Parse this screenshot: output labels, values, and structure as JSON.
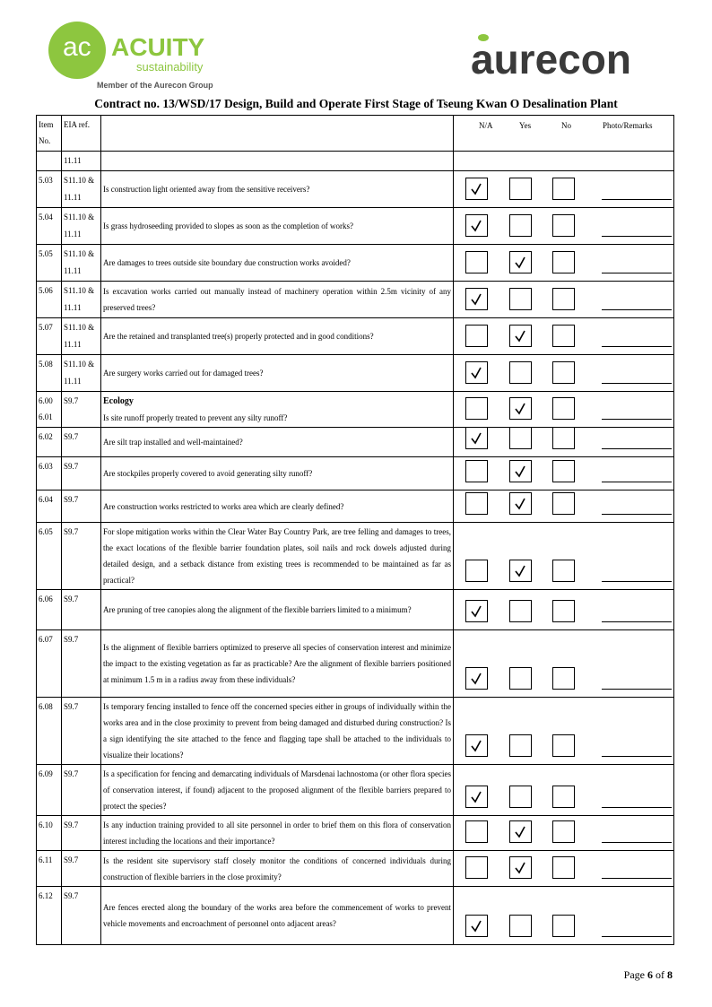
{
  "header": {
    "logo_left": {
      "name": "ACUITY",
      "tagline": "sustainability",
      "member": "Member of the Aurecon Group"
    },
    "logo_right": "aurecon",
    "title": "Contract no.  13/WSD/17 Design, Build and Operate First Stage of Tseung Kwan O Desalination Plant"
  },
  "table": {
    "columns": {
      "item": "Item No.",
      "ref": "EIA ref.",
      "options": [
        "N/A",
        "Yes",
        "No"
      ],
      "remarks": "Photo/Remarks"
    },
    "rows": [
      {
        "item": "",
        "ref": "11.11",
        "question": ""
      },
      {
        "item": "5.03",
        "ref": "S11.10 & 11.11",
        "question": "Is construction light oriented away from the sensitive receivers?",
        "checked": "N/A"
      },
      {
        "item": "5.04",
        "ref": "S11.10 & 11.11",
        "question": "Is grass hydroseeding provided to slopes as soon as the completion of works?",
        "checked": "N/A"
      },
      {
        "item": "5.05",
        "ref": "S11.10 & 11.11",
        "question": "Are damages to trees outside site boundary due construction works avoided?",
        "checked": "Yes"
      },
      {
        "item": "5.06",
        "ref": "S11.10 & 11.11",
        "question": "Is excavation works carried out manually instead of machinery operation within 2.5m vicinity of any preserved trees?",
        "checked": "N/A"
      },
      {
        "item": "5.07",
        "ref": "S11.10 & 11.11",
        "question": "Are the retained and transplanted tree(s) properly protected and in good conditions?",
        "checked": "Yes"
      },
      {
        "item": "5.08",
        "ref": "S11.10 & 11.11",
        "question": "Are surgery works carried out for damaged trees?",
        "checked": "N/A"
      },
      {
        "item": "6.00",
        "sub_item": "6.01",
        "ref": "S9.7",
        "heading": "Ecology",
        "question": "Is site runoff properly treated to prevent any silty runoff?",
        "checked": "Yes"
      },
      {
        "item": "6.02",
        "ref": "S9.7",
        "question": "Are silt trap installed and well-maintained?",
        "checked": "N/A"
      },
      {
        "item": "6.03",
        "ref": "S9.7",
        "question": "Are stockpiles properly covered to avoid generating silty runoff?",
        "checked": "Yes"
      },
      {
        "item": "6.04",
        "ref": "S9.7",
        "question": "Are construction works restricted to works area which are clearly defined?",
        "checked": "Yes"
      },
      {
        "item": "6.05",
        "ref": "S9.7",
        "question": "For slope mitigation works within the Clear Water Bay Country Park, are tree felling and damages to trees, the exact locations of the flexible barrier foundation plates, soil nails and rock dowels adjusted during detailed design, and a setback distance from existing trees is recommended to be maintained as far as practical?",
        "checked": "Yes"
      },
      {
        "item": "6.06",
        "ref": "S9.7",
        "question": "Are pruning of tree canopies along the alignment of the flexible barriers limited to a minimum?",
        "checked": "N/A"
      },
      {
        "item": "6.07",
        "ref": "S9.7",
        "question": "Is the alignment of flexible barriers optimized to preserve all species of conservation interest and minimize the impact to the existing vegetation as far as practicable? Are the alignment of flexible barriers positioned at minimum 1.5 m in a radius away from these individuals?",
        "checked": "N/A"
      },
      {
        "item": "6.08",
        "ref": "S9.7",
        "question": "Is temporary fencing installed to fence off the concerned species either in groups of individually within the works area and in the close proximity to prevent from being damaged and disturbed during construction? Is a sign identifying the site attached to the fence and flagging tape shall be attached to the individuals to visualize their locations?",
        "checked": "N/A"
      },
      {
        "item": "6.09",
        "ref": "S9.7",
        "question": "Is a specification for fencing and demarcating individuals of Marsdenai lachnostoma (or other flora species of conservation interest, if found) adjacent to the proposed alignment of the flexible barriers prepared to protect the species?",
        "checked": "N/A"
      },
      {
        "item": "6.10",
        "ref": "S9.7",
        "question": "Is any induction training provided to all site personnel in order to brief them on this flora of conservation interest including the locations and their importance?",
        "checked": "Yes"
      },
      {
        "item": "6.11",
        "ref": "S9.7",
        "question": "Is the resident site supervisory staff closely monitor the conditions of concerned individuals during construction of flexible barriers in the close proximity?",
        "checked": "Yes"
      },
      {
        "item": "6.12",
        "ref": "S9.7",
        "question": "Are fences erected along the boundary of the works area before the commencement of works to prevent vehicle movements and encroachment of personnel onto adjacent areas?",
        "checked": "N/A"
      }
    ]
  },
  "footer": {
    "page_word": "Page",
    "page": "6",
    "of_word": "of",
    "total": "8"
  }
}
